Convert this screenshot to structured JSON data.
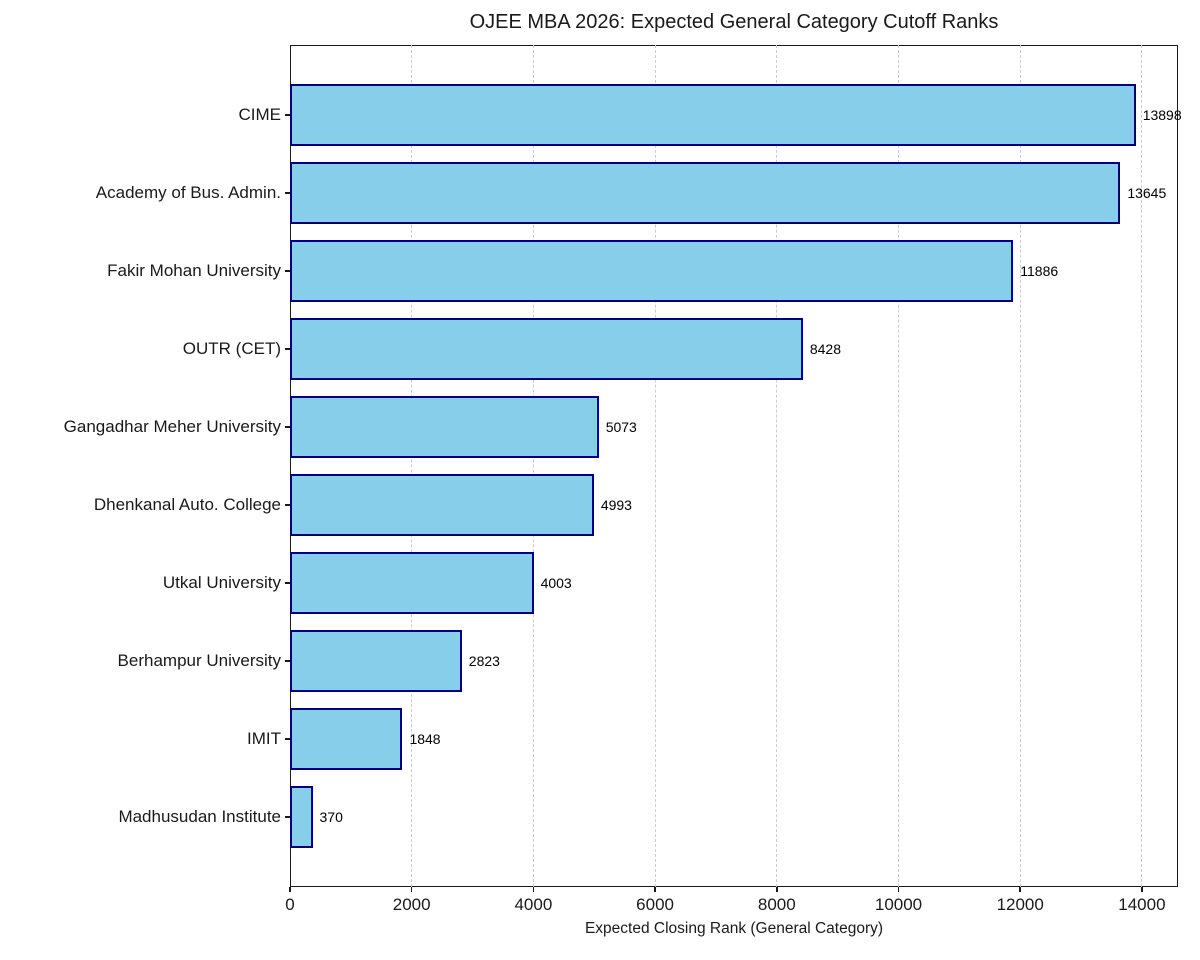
{
  "chart_data": {
    "type": "bar",
    "orientation": "horizontal",
    "title": "OJEE MBA 2026: Expected General Category Cutoff Ranks",
    "xlabel": "Expected Closing Rank (General Category)",
    "ylabel": "",
    "categories": [
      "CIME",
      "Academy of Bus. Admin.",
      "Fakir Mohan University",
      "OUTR (CET)",
      "Gangadhar Meher University",
      "Dhenkanal Auto. College",
      "Utkal University",
      "Berhampur University",
      "IMIT",
      "Madhusudan Institute"
    ],
    "values": [
      13898,
      13645,
      11886,
      8428,
      5073,
      4993,
      4003,
      2823,
      1848,
      370
    ],
    "value_labels": [
      "13898",
      "13645",
      "11886",
      "8428",
      "5073",
      "4993",
      "4003",
      "2823",
      "1848",
      "370"
    ],
    "xlim": [
      0,
      14593
    ],
    "xticks": [
      0,
      2000,
      4000,
      6000,
      8000,
      10000,
      12000,
      14000
    ],
    "grid": "vertical-dashed",
    "grid_color": "#cccccc",
    "bar_fill_color": "#87CEEB",
    "bar_edge_color": "#000080",
    "axis_color": "#1a1a1a",
    "legend": "none"
  }
}
